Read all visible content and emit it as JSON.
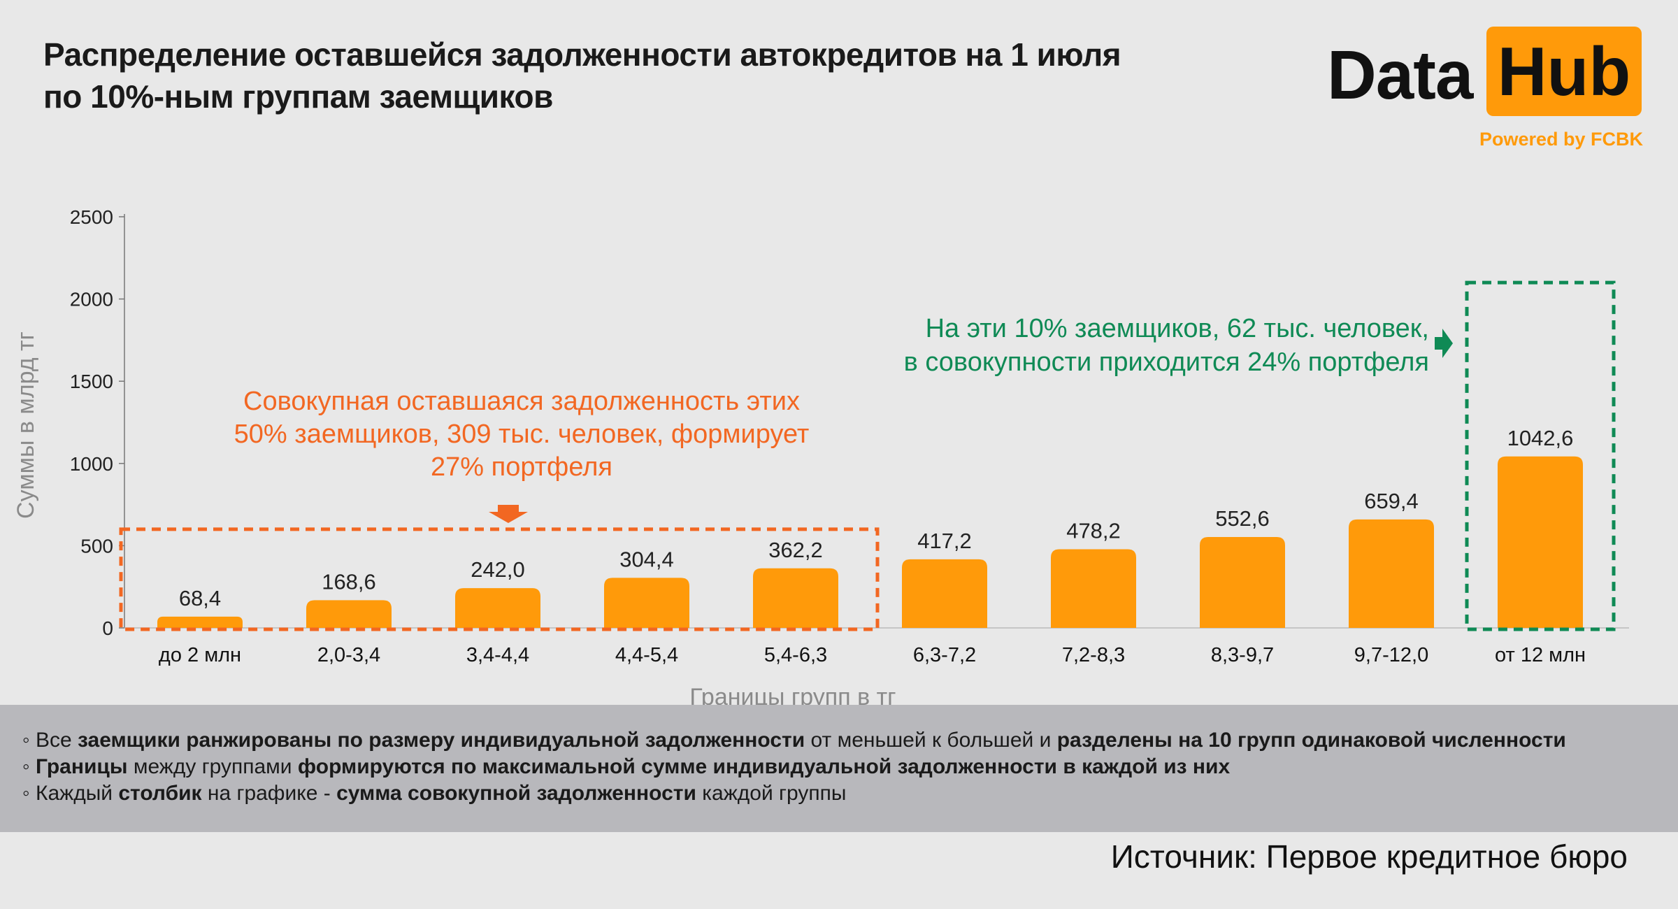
{
  "title": {
    "line1": "Распределение оставшейся задолженности автокредитов на 1 июля",
    "line2": "по 10%-ным группам заемщиков"
  },
  "logo": {
    "word1": "Data",
    "word2": "Hub",
    "tagline": "Powered by FCBK"
  },
  "colors": {
    "bar": "#ff9a0a",
    "orange_annotation": "#f26722",
    "green_annotation": "#0f8a55",
    "axis": "#555555"
  },
  "chart_data": {
    "type": "bar",
    "categories": [
      "до 2 млн",
      "2,0-3,4",
      "3,4-4,4",
      "4,4-5,4",
      "5,4-6,3",
      "6,3-7,2",
      "7,2-8,3",
      "8,3-9,7",
      "9,7-12,0",
      "от 12 млн"
    ],
    "values": [
      68.4,
      168.6,
      242.0,
      304.4,
      362.2,
      417.2,
      478.2,
      552.6,
      659.4,
      1042.6
    ],
    "value_labels": [
      "68,4",
      "168,6",
      "242,0",
      "304,4",
      "362,2",
      "417,2",
      "478,2",
      "552,6",
      "659,4",
      "1042,6"
    ],
    "xlabel": "Границы групп в тг",
    "ylabel": "Суммы в млрд тг",
    "ylim": [
      0,
      2500
    ],
    "yticks": [
      0,
      500,
      1000,
      1500,
      2000,
      2500
    ],
    "grid": false,
    "annotations": {
      "left": {
        "lines": [
          "Совокупная оставшаяся задолженность этих",
          "50% заемщиков, 309 тыс. человек, формирует",
          "27% портфеля"
        ],
        "groups": [
          "до 2 млн",
          "2,0-3,4",
          "3,4-4,4",
          "4,4-5,4",
          "5,4-6,3"
        ]
      },
      "right": {
        "lines": [
          "На эти 10% заемщиков, 62 тыс. человек,",
          "в совокупности приходится 24% портфеля"
        ],
        "groups": [
          "от 12 млн"
        ]
      }
    }
  },
  "notes": [
    [
      {
        "t": "◦ Все ",
        "b": false
      },
      {
        "t": "заемщики ранжированы по размеру индивидуальной задолженности",
        "b": true
      },
      {
        "t": " от меньшей к большей и ",
        "b": false
      },
      {
        "t": "разделены на 10 групп одинаковой численности",
        "b": true
      }
    ],
    [
      {
        "t": "◦ ",
        "b": false
      },
      {
        "t": "Границы",
        "b": true
      },
      {
        "t": " между группами ",
        "b": false
      },
      {
        "t": "формируются по максимальной сумме индивидуальной задолженности в каждой из них",
        "b": true
      }
    ],
    [
      {
        "t": "◦ Каждый ",
        "b": false
      },
      {
        "t": "столбик",
        "b": true
      },
      {
        "t": " на графике - ",
        "b": false
      },
      {
        "t": "сумма совокупной задолженности",
        "b": true
      },
      {
        "t": " каждой группы",
        "b": false
      }
    ]
  ],
  "source": "Источник: Первое кредитное бюро"
}
